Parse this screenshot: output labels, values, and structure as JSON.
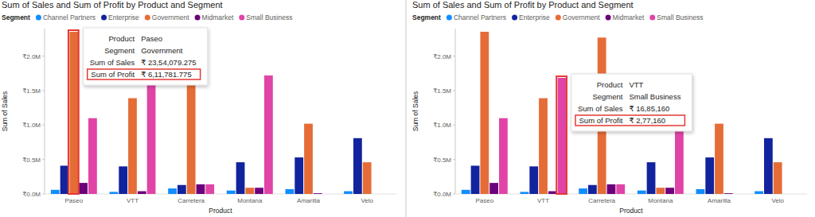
{
  "chart_data": [
    {
      "type": "bar",
      "title": "Sum of Sales and Sum of Profit by Product and Segment",
      "legend_title": "Segment",
      "legend": "top-left",
      "x_label": "Product",
      "y_label": "Sum of Sales",
      "categories": [
        "Paseo",
        "VTT",
        "Carretera",
        "Montana",
        "Amarilla",
        "Velo"
      ],
      "series": [
        {
          "name": "Channel Partners",
          "color": "#118DFF",
          "values": [
            60000,
            30000,
            80000,
            50000,
            70000,
            40000
          ]
        },
        {
          "name": "Enterprise",
          "color": "#12239E",
          "values": [
            410000,
            400000,
            130000,
            460000,
            530000,
            810000
          ]
        },
        {
          "name": "Government",
          "color": "#E66C37",
          "values": [
            2354079.275,
            1390000,
            2270000,
            90000,
            1020000,
            460000
          ]
        },
        {
          "name": "Midmarket",
          "color": "#6B007B",
          "values": [
            160000,
            40000,
            140000,
            90000,
            10000,
            null
          ]
        },
        {
          "name": "Small Business",
          "color": "#E044A7",
          "values": [
            1100000,
            1685160,
            140000,
            1720000,
            null,
            null
          ]
        }
      ],
      "ylim": [
        0,
        2400000
      ],
      "yticks": [
        {
          "value": 0,
          "label": "₹0.0M"
        },
        {
          "value": 500000,
          "label": "₹0.5M"
        },
        {
          "value": 1000000,
          "label": "₹1.0M"
        },
        {
          "value": 1500000,
          "label": "₹1.5M"
        },
        {
          "value": 2000000,
          "label": "₹2.0M"
        }
      ],
      "grid": false,
      "annotations": [
        {
          "category": "Paseo",
          "series": "Government",
          "rows": [
            {
              "label": "Product",
              "text": "Paseo"
            },
            {
              "label": "Segment",
              "text": "Government"
            },
            {
              "label": "Sum of Sales",
              "text": "₹ 23,54,079.275"
            },
            {
              "label": "Sum of Profit",
              "text": "₹ 6,11,781.775",
              "highlighted": true
            }
          ]
        }
      ]
    },
    {
      "type": "bar",
      "title": "Sum of Sales and Sum of Profit by Product and Segment",
      "legend_title": "Segment",
      "legend": "top-left",
      "x_label": "Product",
      "y_label": "Sum of Sales",
      "categories": [
        "Paseo",
        "VTT",
        "Carretera",
        "Montana",
        "Amarilla",
        "Velo"
      ],
      "series": [
        {
          "name": "Channel Partners",
          "color": "#118DFF",
          "values": [
            60000,
            30000,
            80000,
            50000,
            70000,
            40000
          ]
        },
        {
          "name": "Enterprise",
          "color": "#12239E",
          "values": [
            410000,
            400000,
            130000,
            460000,
            530000,
            810000
          ]
        },
        {
          "name": "Government",
          "color": "#E66C37",
          "values": [
            2354079.275,
            1390000,
            2270000,
            90000,
            1020000,
            460000
          ]
        },
        {
          "name": "Midmarket",
          "color": "#6B007B",
          "values": [
            160000,
            40000,
            140000,
            90000,
            10000,
            null
          ]
        },
        {
          "name": "Small Business",
          "color": "#E044A7",
          "values": [
            1100000,
            1685160,
            140000,
            1720000,
            null,
            null
          ]
        }
      ],
      "ylim": [
        0,
        2400000
      ],
      "yticks": [
        {
          "value": 0,
          "label": "₹0.0M"
        },
        {
          "value": 500000,
          "label": "₹0.5M"
        },
        {
          "value": 1000000,
          "label": "₹1.0M"
        },
        {
          "value": 1500000,
          "label": "₹1.5M"
        },
        {
          "value": 2000000,
          "label": "₹2.0M"
        }
      ],
      "grid": false,
      "annotations": [
        {
          "category": "VTT",
          "series": "Small Business",
          "rows": [
            {
              "label": "Product",
              "text": "VTT"
            },
            {
              "label": "Segment",
              "text": "Small Business"
            },
            {
              "label": "Sum of Sales",
              "text": "₹ 16,85,160"
            },
            {
              "label": "Sum of Profit",
              "text": "₹ 2,77,160",
              "highlighted": true
            }
          ]
        }
      ]
    }
  ]
}
